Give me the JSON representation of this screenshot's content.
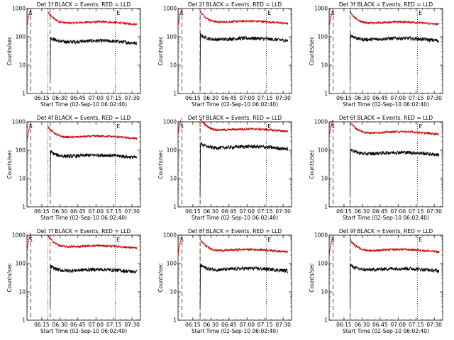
{
  "common": {
    "ylabel": "Counts/sec",
    "xlabel": "Start Time (02-Sep-10 06:02:40)",
    "x_ticks": [
      "06:15",
      "06:30",
      "06:45",
      "07:00",
      "07:15",
      "07:30"
    ],
    "y_ticks": [
      "1",
      "10",
      "100",
      "1000"
    ],
    "marker_S": "S",
    "marker_E": "E",
    "colors": {
      "events": "#000000",
      "lld": "#cc0000"
    }
  },
  "chart_data": [
    {
      "type": "line",
      "title": "Det 1f BLACK = Events, RED = LLD",
      "xlim": [
        "06:02:40",
        "07:37"
      ],
      "ylim": [
        1,
        1000
      ],
      "log_y": true,
      "lld_gap": [
        "06:06",
        "06:20"
      ],
      "events_start": "06:22",
      "series": [
        {
          "name": "LLD",
          "color": "red",
          "level": 300
        },
        {
          "name": "Events",
          "color": "black",
          "level": 65
        }
      ]
    },
    {
      "type": "line",
      "title": "Det 2f BLACK = Events, RED = LLD",
      "xlim": [
        "06:02:40",
        "07:37"
      ],
      "ylim": [
        1,
        1000
      ],
      "log_y": true,
      "lld_gap": [
        "06:06",
        "06:21"
      ],
      "events_start": "06:21",
      "series": [
        {
          "name": "LLD",
          "color": "red",
          "level": 320
        },
        {
          "name": "Events",
          "color": "black",
          "level": 80
        }
      ]
    },
    {
      "type": "line",
      "title": "Det 3f BLACK = Events, RED = LLD",
      "xlim": [
        "06:02:40",
        "07:37"
      ],
      "ylim": [
        1,
        1000
      ],
      "log_y": true,
      "lld_gap": [
        "06:06",
        "06:20"
      ],
      "events_start": "06:20",
      "series": [
        {
          "name": "LLD",
          "color": "red",
          "level": 300
        },
        {
          "name": "Events",
          "color": "black",
          "level": 80
        }
      ]
    },
    {
      "type": "line",
      "title": "Det 4f BLACK = Events, RED = LLD",
      "xlim": [
        "06:02:40",
        "07:37"
      ],
      "ylim": [
        1,
        1000
      ],
      "log_y": true,
      "lld_gap": [
        "06:06",
        "06:20"
      ],
      "events_start": "06:22",
      "series": [
        {
          "name": "LLD",
          "color": "red",
          "level": 280
        },
        {
          "name": "Events",
          "color": "black",
          "level": 60
        }
      ]
    },
    {
      "type": "line",
      "title": "Det 5f BLACK = Events, RED = LLD",
      "xlim": [
        "06:02:40",
        "07:37"
      ],
      "ylim": [
        1,
        1000
      ],
      "log_y": true,
      "lld_gap": [
        "06:06",
        "06:21"
      ],
      "events_start": "06:21",
      "series": [
        {
          "name": "LLD",
          "color": "red",
          "level": 500
        },
        {
          "name": "Events",
          "color": "black",
          "level": 120
        }
      ]
    },
    {
      "type": "line",
      "title": "Det 6f BLACK = Events, RED = LLD",
      "xlim": [
        "06:02:40",
        "07:37"
      ],
      "ylim": [
        1,
        1000
      ],
      "log_y": true,
      "lld_gap": [
        "06:06",
        "06:20"
      ],
      "events_start": "06:20",
      "series": [
        {
          "name": "LLD",
          "color": "red",
          "level": 400
        },
        {
          "name": "Events",
          "color": "black",
          "level": 75
        }
      ]
    },
    {
      "type": "line",
      "title": "Det 7f BLACK = Events, RED = LLD",
      "xlim": [
        "06:02:40",
        "07:37"
      ],
      "ylim": [
        1,
        1000
      ],
      "log_y": true,
      "lld_gap": [
        "06:06",
        "06:20"
      ],
      "events_start": "06:22",
      "series": [
        {
          "name": "LLD",
          "color": "red",
          "level": 380
        },
        {
          "name": "Events",
          "color": "black",
          "level": 55
        }
      ]
    },
    {
      "type": "line",
      "title": "Det 8f BLACK = Events, RED = LLD",
      "xlim": [
        "06:02:40",
        "07:37"
      ],
      "ylim": [
        1,
        1000
      ],
      "log_y": true,
      "lld_gap": [
        "06:06",
        "06:21"
      ],
      "events_start": "06:21",
      "series": [
        {
          "name": "LLD",
          "color": "red",
          "level": 280
        },
        {
          "name": "Events",
          "color": "black",
          "level": 60
        }
      ]
    },
    {
      "type": "line",
      "title": "Det 9f BLACK = Events, RED = LLD",
      "xlim": [
        "06:02:40",
        "07:37"
      ],
      "ylim": [
        1,
        1000
      ],
      "log_y": true,
      "lld_gap": [
        "06:06",
        "06:20"
      ],
      "events_start": "06:20",
      "series": [
        {
          "name": "LLD",
          "color": "red",
          "level": 280
        },
        {
          "name": "Events",
          "color": "black",
          "level": 60
        }
      ]
    }
  ]
}
